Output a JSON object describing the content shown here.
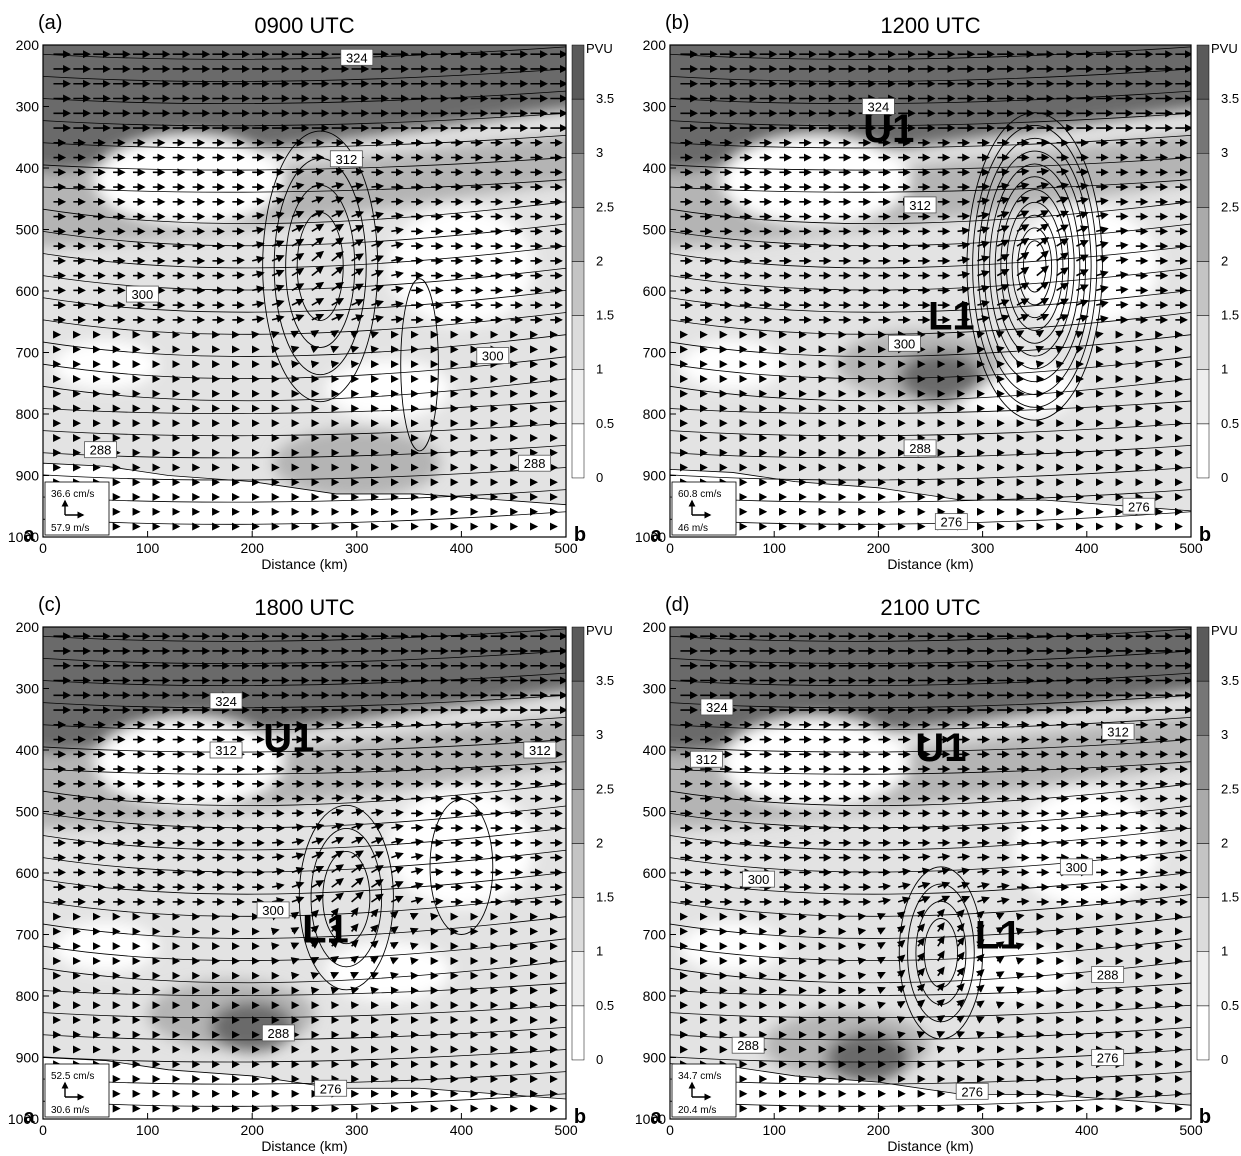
{
  "figure": {
    "xlabel": "Distance (km)",
    "colorbar_title": "PVU",
    "colorbar_ticks": [
      0,
      0.5,
      1,
      1.5,
      2,
      2.5,
      3,
      3.5
    ],
    "y_ticks": [
      200,
      300,
      400,
      500,
      600,
      700,
      800,
      900,
      1000
    ],
    "x_ticks": [
      0,
      100,
      200,
      300,
      400,
      500
    ],
    "endpoint_left": "a",
    "endpoint_right": "b",
    "colors": {
      "shade_light": "#e3e3e3",
      "shade_mid": "#b4b4b4",
      "shade_dark": "#6b6b6b",
      "line": "#000000"
    }
  },
  "chart_data": [
    {
      "type": "heatmap",
      "panel_label": "(a)",
      "title": "0900 UTC",
      "xlim": [
        0,
        500
      ],
      "ylim": [
        1000,
        200
      ],
      "vector_scale": {
        "vertical": "36.6 cm/s",
        "horizontal": "57.9 m/s"
      },
      "theta_labels": [
        {
          "text": "324",
          "x": 300,
          "p": 220
        },
        {
          "text": "312",
          "x": 290,
          "p": 385
        },
        {
          "text": "300",
          "x": 95,
          "p": 605
        },
        {
          "text": "300",
          "x": 430,
          "p": 705
        },
        {
          "text": "288",
          "x": 55,
          "p": 858
        },
        {
          "text": "288",
          "x": 470,
          "p": 880
        }
      ],
      "feature_labels": []
    },
    {
      "type": "heatmap",
      "panel_label": "(b)",
      "title": "1200 UTC",
      "xlim": [
        0,
        500
      ],
      "ylim": [
        1000,
        200
      ],
      "vector_scale": {
        "vertical": "60.8 cm/s",
        "horizontal": "46 m/s"
      },
      "theta_labels": [
        {
          "text": "324",
          "x": 200,
          "p": 300
        },
        {
          "text": "312",
          "x": 240,
          "p": 460
        },
        {
          "text": "300",
          "x": 225,
          "p": 685
        },
        {
          "text": "288",
          "x": 240,
          "p": 855
        },
        {
          "text": "276",
          "x": 270,
          "p": 975
        },
        {
          "text": "276",
          "x": 450,
          "p": 950
        }
      ],
      "feature_labels": [
        {
          "text": "U1",
          "x": 210,
          "p": 335
        },
        {
          "text": "L1",
          "x": 270,
          "p": 640
        }
      ]
    },
    {
      "type": "heatmap",
      "panel_label": "(c)",
      "title": "1800 UTC",
      "xlim": [
        0,
        500
      ],
      "ylim": [
        1000,
        200
      ],
      "vector_scale": {
        "vertical": "52.5 cm/s",
        "horizontal": "30.6 m/s"
      },
      "theta_labels": [
        {
          "text": "324",
          "x": 175,
          "p": 320
        },
        {
          "text": "312",
          "x": 175,
          "p": 400
        },
        {
          "text": "312",
          "x": 475,
          "p": 400
        },
        {
          "text": "300",
          "x": 220,
          "p": 660
        },
        {
          "text": "288",
          "x": 225,
          "p": 860
        },
        {
          "text": "276",
          "x": 275,
          "p": 950
        }
      ],
      "feature_labels": [
        {
          "text": "U1",
          "x": 235,
          "p": 380
        },
        {
          "text": "L1",
          "x": 270,
          "p": 690
        }
      ]
    },
    {
      "type": "heatmap",
      "panel_label": "(d)",
      "title": "2100 UTC",
      "xlim": [
        0,
        500
      ],
      "ylim": [
        1000,
        200
      ],
      "vector_scale": {
        "vertical": "34.7 cm/s",
        "horizontal": "20.4 m/s"
      },
      "theta_labels": [
        {
          "text": "324",
          "x": 45,
          "p": 330
        },
        {
          "text": "312",
          "x": 35,
          "p": 415
        },
        {
          "text": "312",
          "x": 430,
          "p": 370
        },
        {
          "text": "300",
          "x": 85,
          "p": 610
        },
        {
          "text": "300",
          "x": 390,
          "p": 590
        },
        {
          "text": "288",
          "x": 75,
          "p": 880
        },
        {
          "text": "288",
          "x": 420,
          "p": 765
        },
        {
          "text": "276",
          "x": 290,
          "p": 955
        },
        {
          "text": "276",
          "x": 420,
          "p": 900
        }
      ],
      "feature_labels": [
        {
          "text": "U1",
          "x": 260,
          "p": 395
        },
        {
          "text": "L1",
          "x": 315,
          "p": 700
        }
      ]
    }
  ]
}
